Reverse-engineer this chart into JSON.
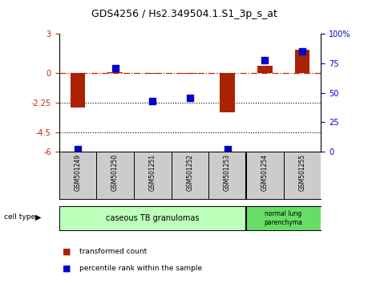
{
  "title": "GDS4256 / Hs2.349504.1.S1_3p_s_at",
  "samples": [
    "GSM501249",
    "GSM501250",
    "GSM501251",
    "GSM501252",
    "GSM501253",
    "GSM501254",
    "GSM501255"
  ],
  "transformed_count": [
    -2.6,
    0.1,
    -0.05,
    -0.05,
    -3.0,
    0.55,
    1.8
  ],
  "percentile_rank": [
    2,
    71,
    43,
    46,
    2,
    78,
    85
  ],
  "ylim_left": [
    -6,
    3
  ],
  "ylim_right": [
    0,
    100
  ],
  "yticks_left": [
    3,
    0,
    -2.25,
    -4.5,
    -6
  ],
  "yticks_right": [
    100,
    75,
    50,
    25,
    0
  ],
  "bar_color": "#aa2200",
  "dot_color": "#0000cc",
  "group1_label": "caseous TB granulomas",
  "group1_color": "#bbffbb",
  "group2_label": "normal lung\nparenchyma",
  "group2_color": "#66dd66",
  "cell_type_label": "cell type",
  "legend_bar_label": "transformed count",
  "legend_dot_label": "percentile rank within the sample",
  "background_color": "#ffffff",
  "tick_color_left": "#cc2200",
  "tick_color_right": "#0000cc",
  "group_boundary_idx": 4
}
